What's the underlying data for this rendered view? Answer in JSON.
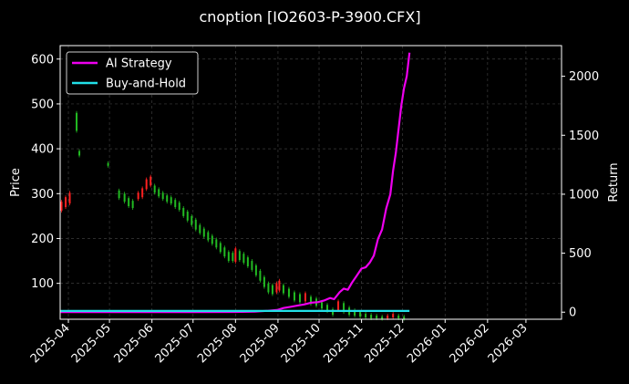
{
  "chart_data": {
    "type": "line",
    "title": "cnoption [IO2603-P-3900.CFX]",
    "xlabel": "",
    "ylabel_left": "Price",
    "ylabel_right": "Return",
    "x_range": [
      "2025-03-26",
      "2026-03-27"
    ],
    "x_ticks": [
      "2025-04",
      "2025-05",
      "2025-06",
      "2025-07",
      "2025-08",
      "2025-09",
      "2025-10",
      "2025-11",
      "2025-12",
      "2026-01",
      "2026-02",
      "2026-03"
    ],
    "ylim_left": [
      20,
      630
    ],
    "yticks_left": [
      100,
      200,
      300,
      400,
      500,
      600
    ],
    "ylim_right": [
      -60,
      2260
    ],
    "yticks_right": [
      0,
      500,
      1000,
      1500,
      2000
    ],
    "grid": true,
    "legend_position": "top-left",
    "colors": {
      "background": "#000000",
      "grid": "#3c3c3c",
      "candle_up": "#ff2020",
      "candle_down": "#22bb22",
      "ai_strategy": "#ee00ee",
      "buy_and_hold": "#22e0e8"
    },
    "series": [
      {
        "name": "AI Strategy",
        "axis": "right",
        "points": [
          [
            "2025-03-26",
            0
          ],
          [
            "2025-05-01",
            0
          ],
          [
            "2025-06-01",
            0
          ],
          [
            "2025-07-01",
            0
          ],
          [
            "2025-08-01",
            2
          ],
          [
            "2025-08-15",
            5
          ],
          [
            "2025-08-25",
            12
          ],
          [
            "2025-09-01",
            20
          ],
          [
            "2025-09-05",
            35
          ],
          [
            "2025-09-10",
            45
          ],
          [
            "2025-09-15",
            55
          ],
          [
            "2025-09-20",
            65
          ],
          [
            "2025-09-25",
            80
          ],
          [
            "2025-09-30",
            85
          ],
          [
            "2025-10-05",
            100
          ],
          [
            "2025-10-09",
            120
          ],
          [
            "2025-10-12",
            110
          ],
          [
            "2025-10-16",
            170
          ],
          [
            "2025-10-19",
            200
          ],
          [
            "2025-10-22",
            190
          ],
          [
            "2025-10-25",
            250
          ],
          [
            "2025-10-28",
            300
          ],
          [
            "2025-11-01",
            370
          ],
          [
            "2025-11-04",
            380
          ],
          [
            "2025-11-07",
            420
          ],
          [
            "2025-11-10",
            480
          ],
          [
            "2025-11-13",
            620
          ],
          [
            "2025-11-16",
            700
          ],
          [
            "2025-11-19",
            880
          ],
          [
            "2025-11-22",
            1000
          ],
          [
            "2025-11-24",
            1200
          ],
          [
            "2025-11-26",
            1350
          ],
          [
            "2025-11-28",
            1550
          ],
          [
            "2025-11-30",
            1750
          ],
          [
            "2025-12-02",
            1900
          ],
          [
            "2025-12-04",
            2000
          ],
          [
            "2025-12-06",
            2200
          ]
        ]
      },
      {
        "name": "Buy-and-Hold",
        "axis": "right",
        "points": [
          [
            "2025-03-26",
            10
          ],
          [
            "2025-06-01",
            10
          ],
          [
            "2025-09-01",
            10
          ],
          [
            "2025-12-06",
            10
          ]
        ]
      }
    ],
    "candles": [
      [
        "2025-03-27",
        262,
        282
      ],
      [
        "2025-03-30",
        270,
        292
      ],
      [
        "2025-04-02",
        278,
        302
      ],
      [
        "2025-04-05",
        548,
        578
      ],
      [
        "2025-04-07",
        440,
        480
      ],
      [
        "2025-04-09",
        385,
        395
      ],
      [
        "2025-04-30",
        362,
        368
      ],
      [
        "2025-05-08",
        290,
        307
      ],
      [
        "2025-05-12",
        282,
        300
      ],
      [
        "2025-05-15",
        272,
        290
      ],
      [
        "2025-05-18",
        268,
        284
      ],
      [
        "2025-05-22",
        288,
        302
      ],
      [
        "2025-05-25",
        292,
        312
      ],
      [
        "2025-05-28",
        310,
        332
      ],
      [
        "2025-05-31",
        318,
        338
      ],
      [
        "2025-06-03",
        302,
        318
      ],
      [
        "2025-06-06",
        294,
        310
      ],
      [
        "2025-06-09",
        288,
        302
      ],
      [
        "2025-06-12",
        282,
        296
      ],
      [
        "2025-06-15",
        278,
        292
      ],
      [
        "2025-06-18",
        270,
        286
      ],
      [
        "2025-06-21",
        264,
        280
      ],
      [
        "2025-06-24",
        250,
        268
      ],
      [
        "2025-06-27",
        240,
        260
      ],
      [
        "2025-06-30",
        230,
        250
      ],
      [
        "2025-07-03",
        220,
        242
      ],
      [
        "2025-07-06",
        212,
        230
      ],
      [
        "2025-07-09",
        204,
        222
      ],
      [
        "2025-07-12",
        196,
        214
      ],
      [
        "2025-07-15",
        188,
        206
      ],
      [
        "2025-07-18",
        180,
        198
      ],
      [
        "2025-07-21",
        170,
        190
      ],
      [
        "2025-07-24",
        160,
        180
      ],
      [
        "2025-07-27",
        150,
        170
      ],
      [
        "2025-07-30",
        150,
        168
      ],
      [
        "2025-08-01",
        148,
        178
      ],
      [
        "2025-08-04",
        152,
        172
      ],
      [
        "2025-08-07",
        146,
        166
      ],
      [
        "2025-08-10",
        138,
        158
      ],
      [
        "2025-08-13",
        130,
        150
      ],
      [
        "2025-08-16",
        118,
        140
      ],
      [
        "2025-08-19",
        106,
        128
      ],
      [
        "2025-08-22",
        92,
        114
      ],
      [
        "2025-08-25",
        80,
        100
      ],
      [
        "2025-08-28",
        76,
        96
      ],
      [
        "2025-08-31",
        80,
        100
      ],
      [
        "2025-09-02",
        84,
        106
      ],
      [
        "2025-09-05",
        78,
        96
      ],
      [
        "2025-09-09",
        70,
        88
      ],
      [
        "2025-09-13",
        62,
        80
      ],
      [
        "2025-09-17",
        58,
        76
      ],
      [
        "2025-09-21",
        60,
        78
      ],
      [
        "2025-09-25",
        54,
        70
      ],
      [
        "2025-09-29",
        50,
        66
      ],
      [
        "2025-10-03",
        44,
        58
      ],
      [
        "2025-10-07",
        38,
        52
      ],
      [
        "2025-10-11",
        30,
        42
      ],
      [
        "2025-10-15",
        40,
        60
      ],
      [
        "2025-10-19",
        36,
        56
      ],
      [
        "2025-10-23",
        30,
        46
      ],
      [
        "2025-10-27",
        28,
        40
      ],
      [
        "2025-10-31",
        26,
        36
      ],
      [
        "2025-11-04",
        24,
        32
      ],
      [
        "2025-11-08",
        22,
        30
      ],
      [
        "2025-11-12",
        22,
        28
      ],
      [
        "2025-11-16",
        21,
        26
      ],
      [
        "2025-11-20",
        22,
        28
      ],
      [
        "2025-11-24",
        24,
        32
      ],
      [
        "2025-11-28",
        22,
        28
      ],
      [
        "2025-12-02",
        21,
        26
      ]
    ]
  }
}
